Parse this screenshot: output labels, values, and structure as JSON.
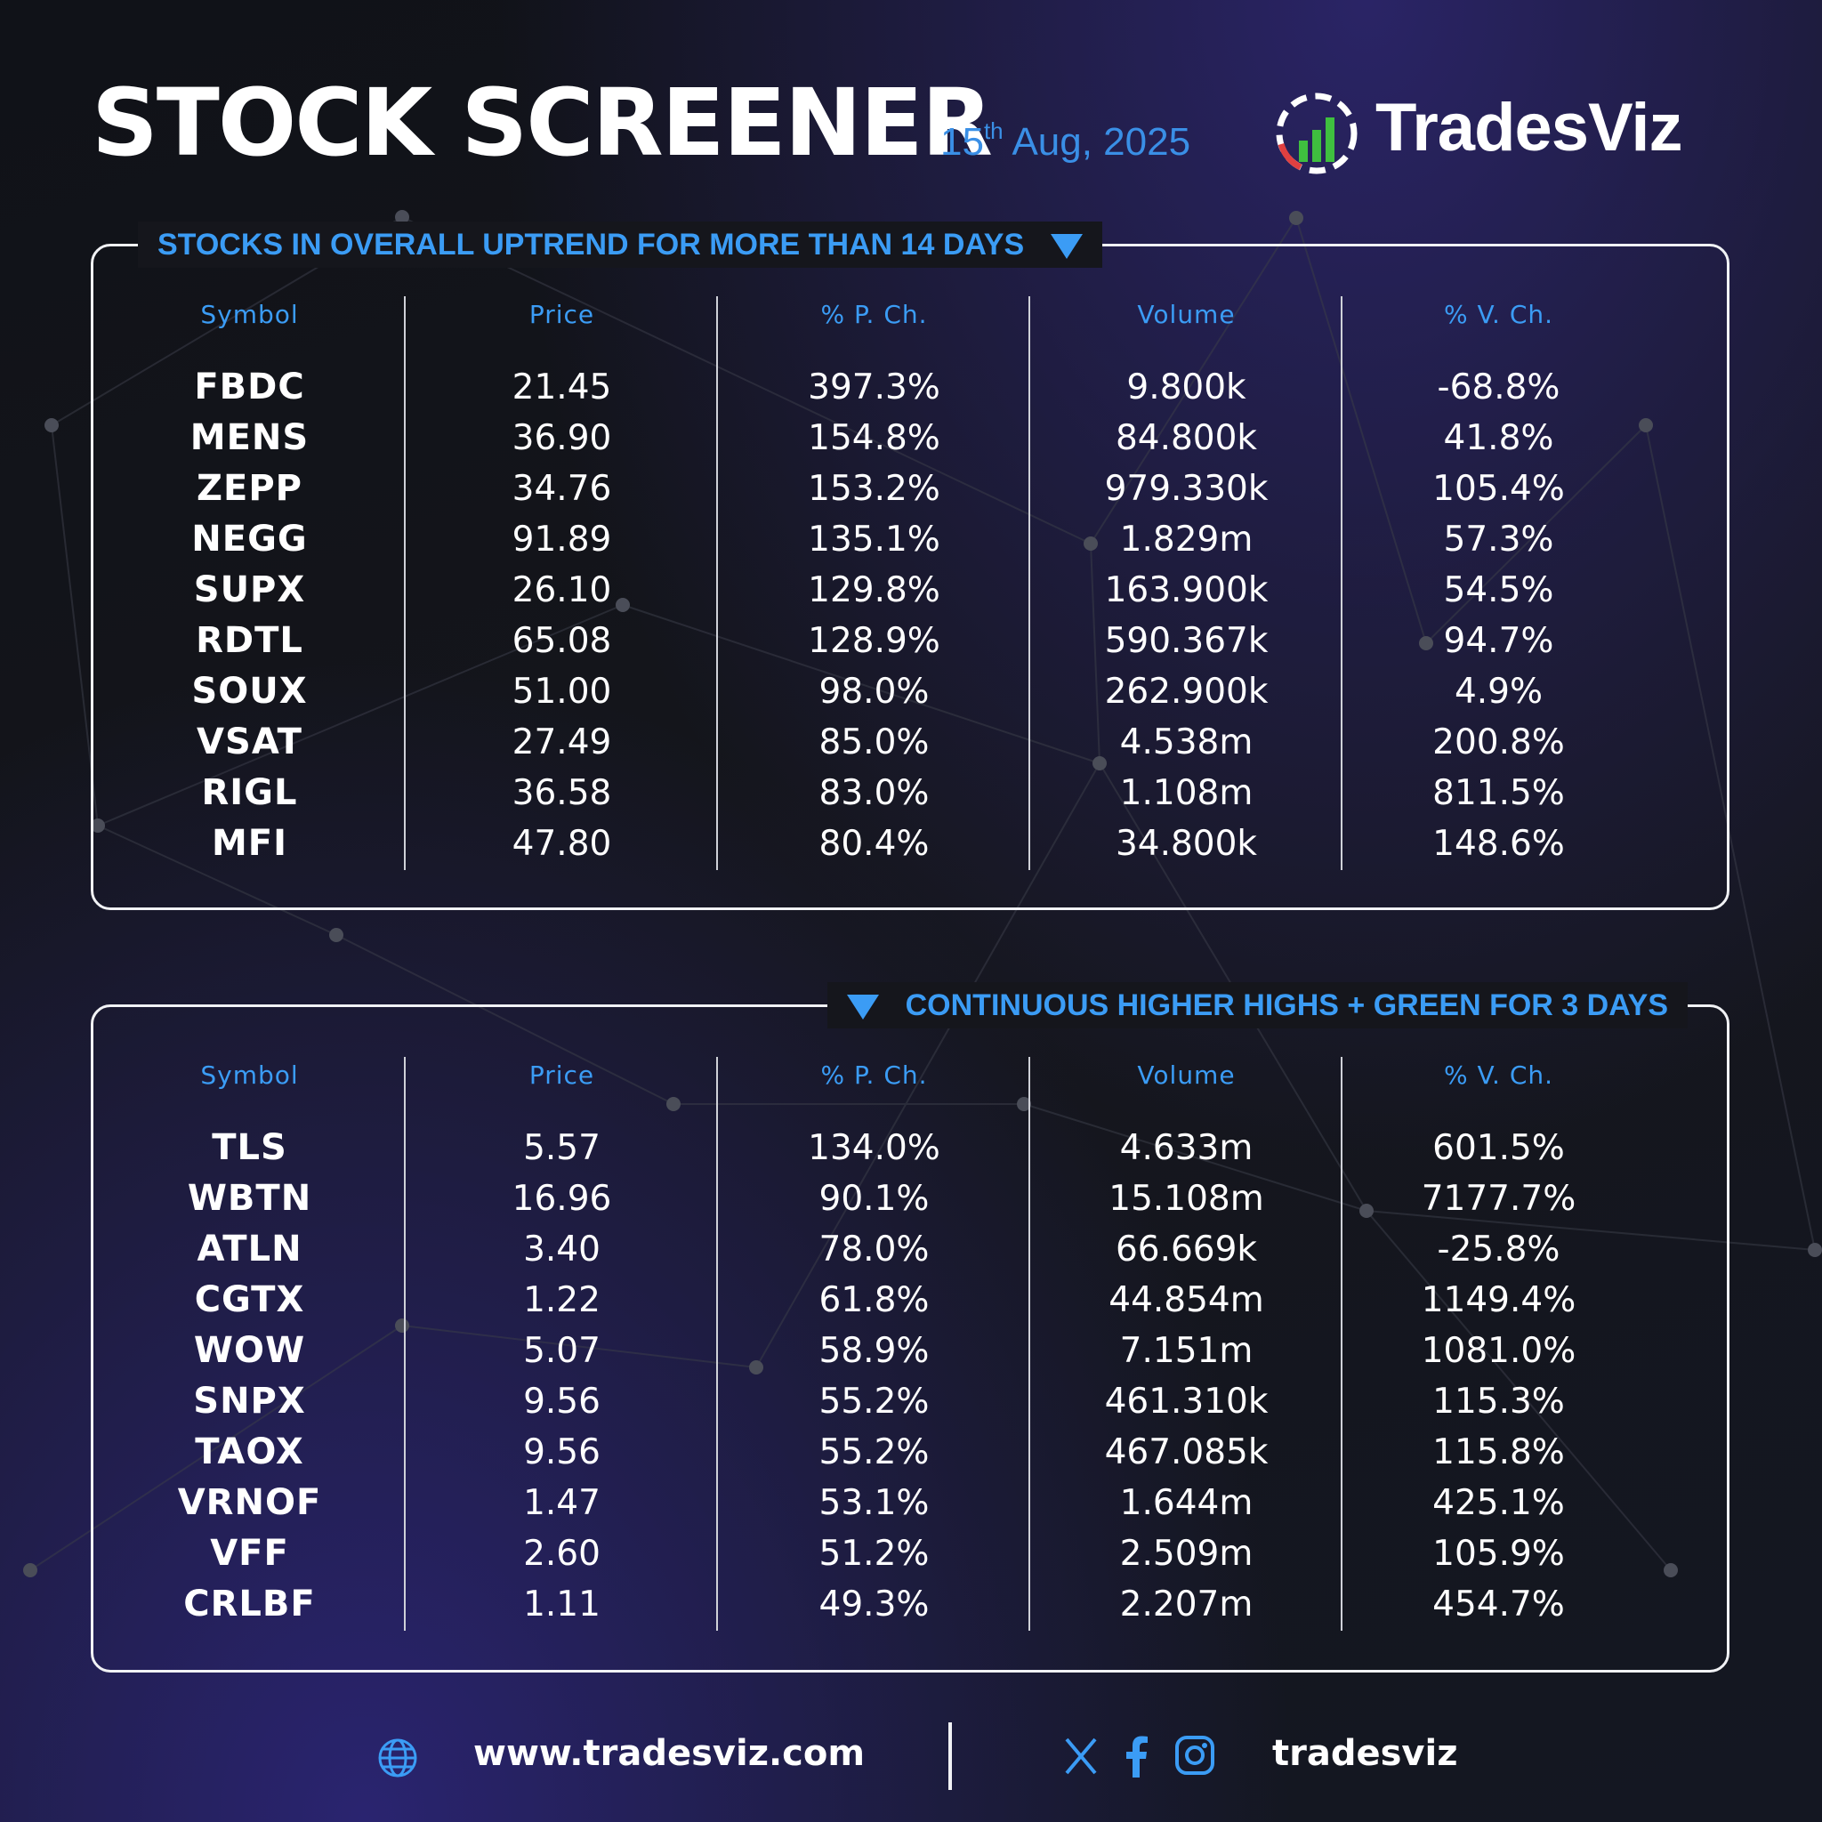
{
  "header": {
    "title": "STOCK SCREENER",
    "date_day": "15",
    "date_suffix": "th",
    "date_rest": " Aug, 2025",
    "brand": "TradesViz",
    "brand_icon": "bar-chart-logo-icon"
  },
  "colors": {
    "accent": "#3b9cf5",
    "background": "#15161c",
    "text": "#ffffff",
    "logo_green": "#3fbf3f",
    "logo_red": "#e04040"
  },
  "columns": [
    "Symbol",
    "Price",
    "% P. Ch.",
    "Volume",
    "% V. Ch."
  ],
  "panels": [
    {
      "title": "STOCKS IN OVERALL UPTREND FOR MORE THAN 14 DAYS",
      "rows": [
        [
          "FBDC",
          "21.45",
          "397.3%",
          "9.800k",
          "-68.8%"
        ],
        [
          "MENS",
          "36.90",
          "154.8%",
          "84.800k",
          "41.8%"
        ],
        [
          "ZEPP",
          "34.76",
          "153.2%",
          "979.330k",
          "105.4%"
        ],
        [
          "NEGG",
          "91.89",
          "135.1%",
          "1.829m",
          "57.3%"
        ],
        [
          "SUPX",
          "26.10",
          "129.8%",
          "163.900k",
          "54.5%"
        ],
        [
          "RDTL",
          "65.08",
          "128.9%",
          "590.367k",
          "94.7%"
        ],
        [
          "SOUX",
          "51.00",
          "98.0%",
          "262.900k",
          "4.9%"
        ],
        [
          "VSAT",
          "27.49",
          "85.0%",
          "4.538m",
          "200.8%"
        ],
        [
          "RIGL",
          "36.58",
          "83.0%",
          "1.108m",
          "811.5%"
        ],
        [
          "MFI",
          "47.80",
          "80.4%",
          "34.800k",
          "148.6%"
        ]
      ]
    },
    {
      "title": "CONTINUOUS HIGHER HIGHS + GREEN FOR 3 DAYS",
      "rows": [
        [
          "TLS",
          "5.57",
          "134.0%",
          "4.633m",
          "601.5%"
        ],
        [
          "WBTN",
          "16.96",
          "90.1%",
          "15.108m",
          "7177.7%"
        ],
        [
          "ATLN",
          "3.40",
          "78.0%",
          "66.669k",
          "-25.8%"
        ],
        [
          "CGTX",
          "1.22",
          "61.8%",
          "44.854m",
          "1149.4%"
        ],
        [
          "WOW",
          "5.07",
          "58.9%",
          "7.151m",
          "1081.0%"
        ],
        [
          "SNPX",
          "9.56",
          "55.2%",
          "461.310k",
          "115.3%"
        ],
        [
          "TAOX",
          "9.56",
          "55.2%",
          "467.085k",
          "115.8%"
        ],
        [
          "VRNOF",
          "1.47",
          "53.1%",
          "1.644m",
          "425.1%"
        ],
        [
          "VFF",
          "2.60",
          "51.2%",
          "2.509m",
          "105.9%"
        ],
        [
          "CRLBF",
          "1.11",
          "49.3%",
          "2.207m",
          "454.7%"
        ]
      ]
    }
  ],
  "footer": {
    "website": "www.tradesviz.com",
    "handle": "tradesviz",
    "icons": [
      "globe-icon",
      "x-icon",
      "facebook-icon",
      "instagram-icon"
    ]
  }
}
